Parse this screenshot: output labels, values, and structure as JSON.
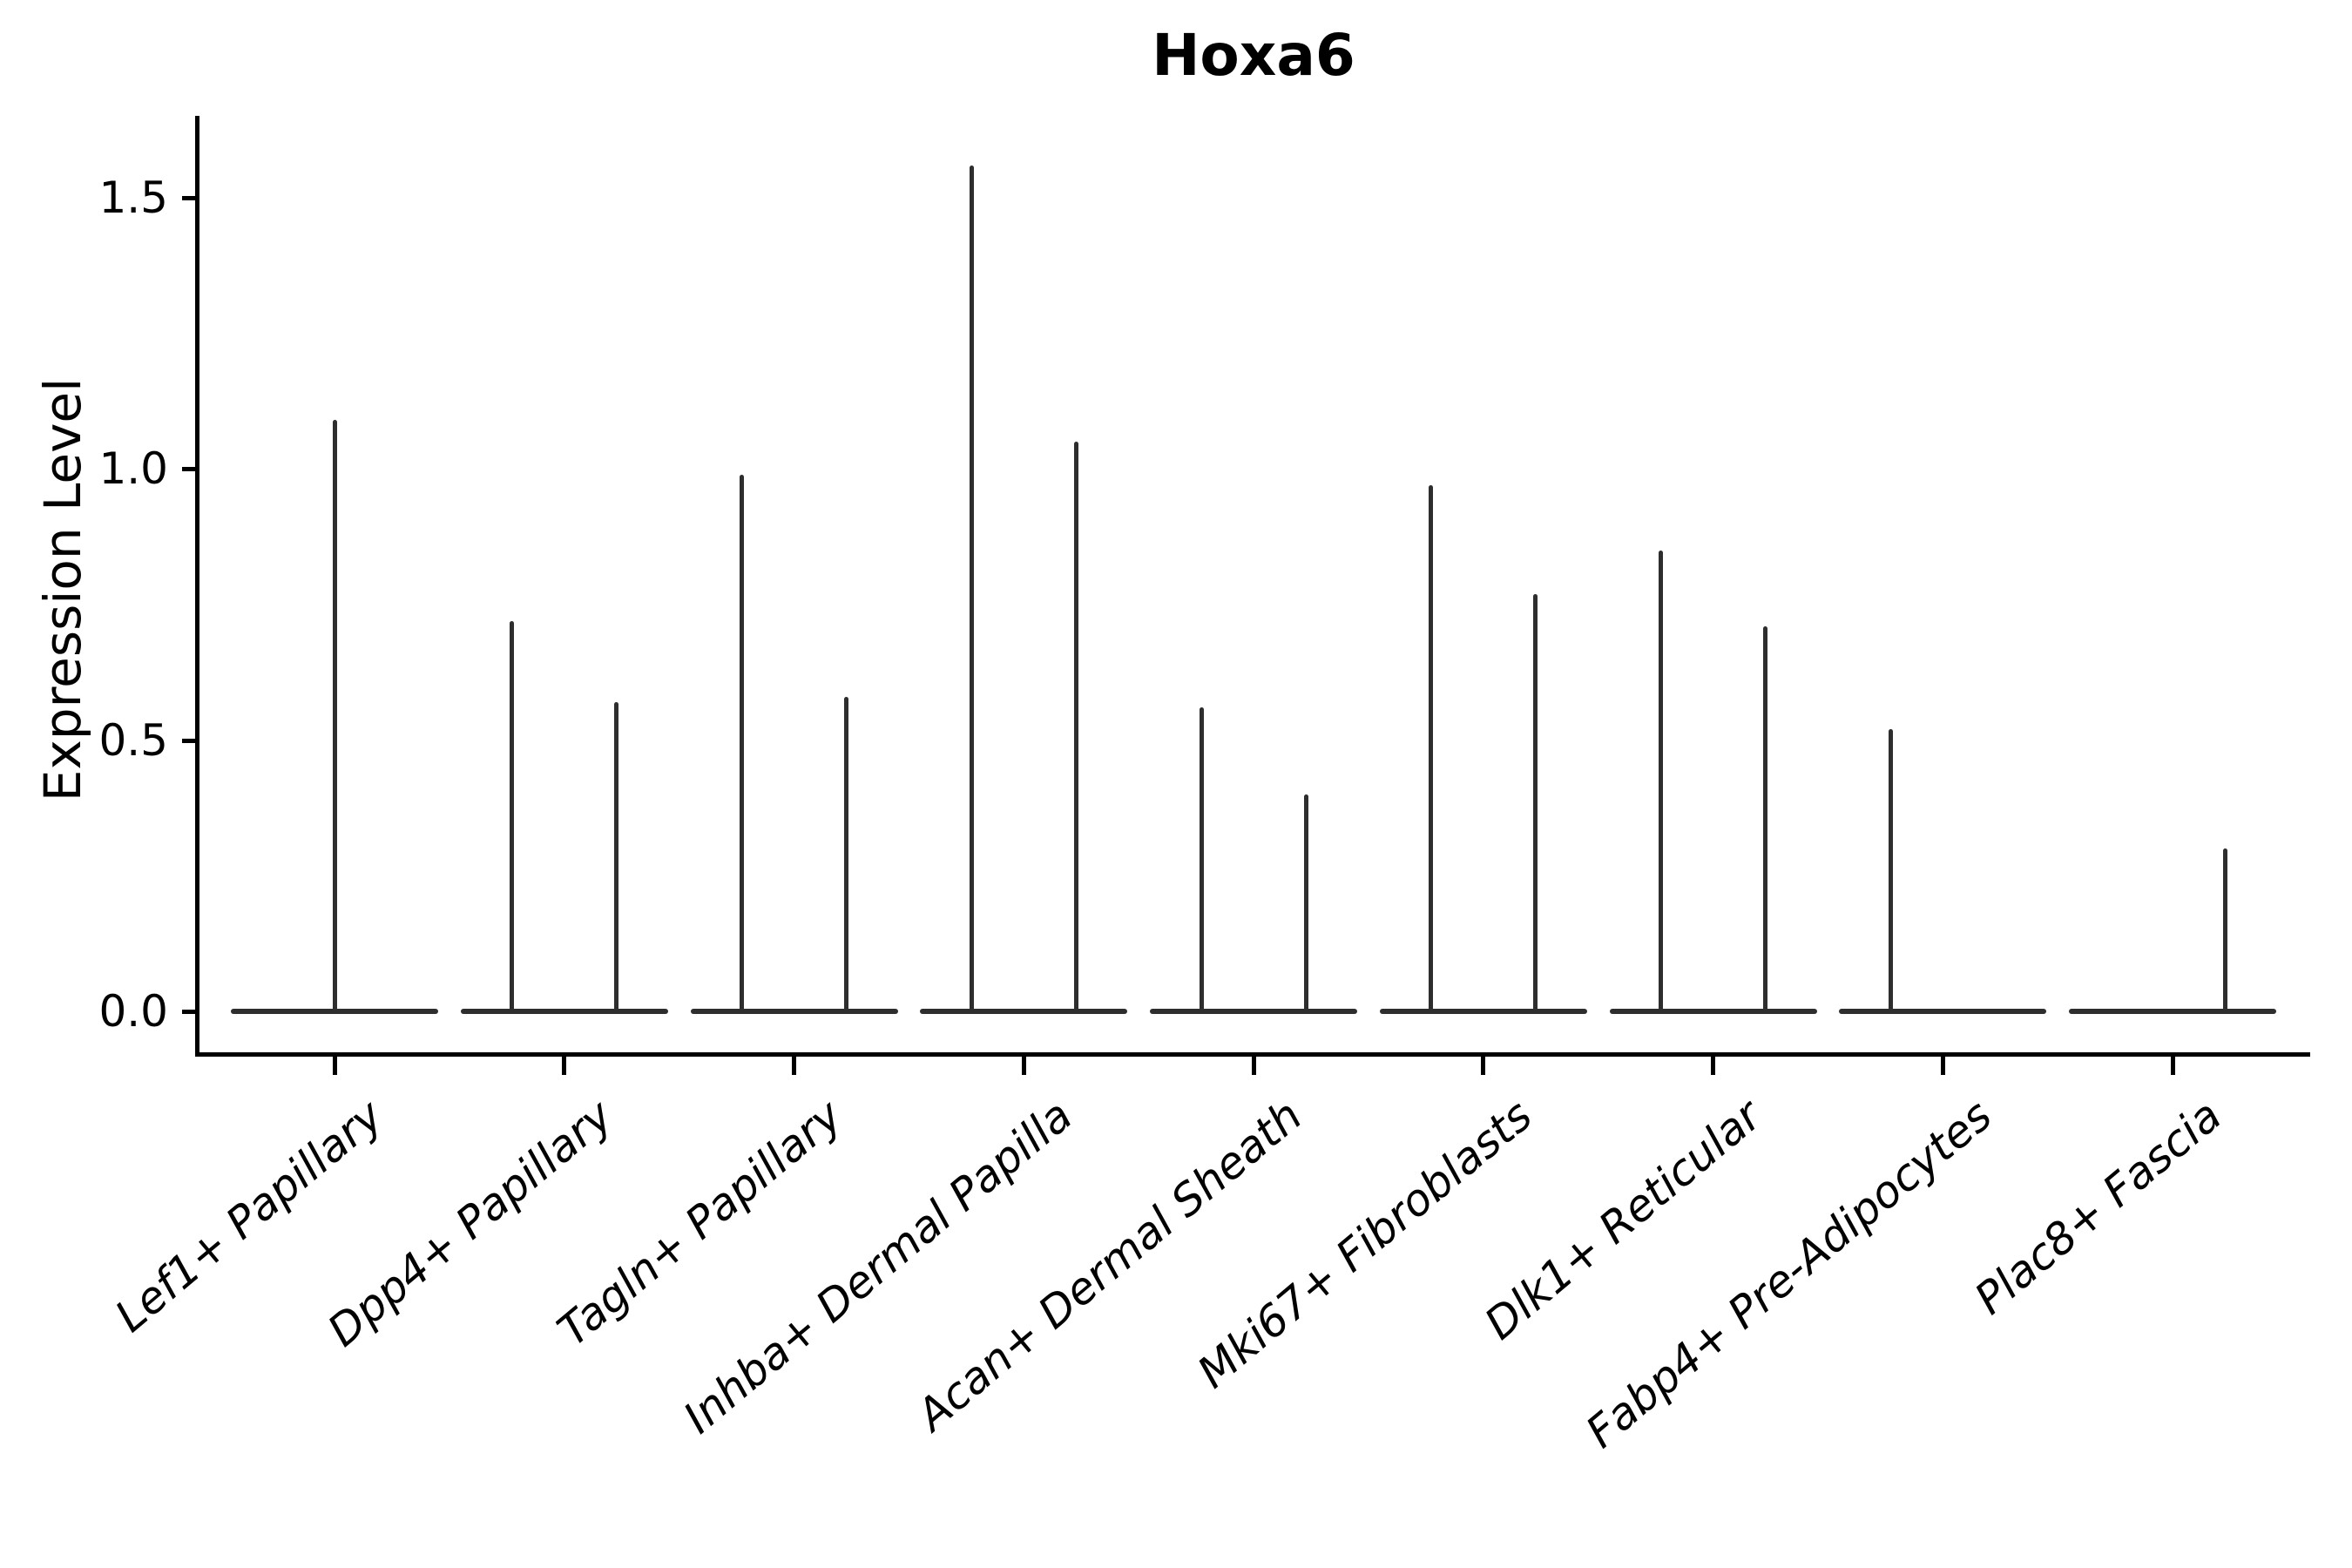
{
  "colors": {
    "background": "#ffffff",
    "ink": "#2e2e2e",
    "axis": "#000000"
  },
  "chart_data": {
    "type": "violin",
    "title": "Hoxa6",
    "xlabel": "",
    "ylabel": "Expression Level",
    "ylim": [
      -0.08,
      1.65
    ],
    "yticks": [
      0.0,
      0.5,
      1.0,
      1.5
    ],
    "ytick_labels": [
      "0.0",
      "0.5",
      "1.0",
      "1.5"
    ],
    "grid": false,
    "legend": "none",
    "categories": [
      "Lef1+ Papillary",
      "Dpp4+ Papillary",
      "Tagln+ Papillary",
      "Inhba+ Dermal Papilla",
      "Acan+ Dermal Sheath",
      "Mki67+ Fibroblasts",
      "Dlk1+ Reticular",
      "Fabp4+ Pre-Adipocytes",
      "Plac8+ Fascia"
    ],
    "series": [
      {
        "name": "Lef1+ Papillary",
        "spikes": [
          {
            "offset": 0,
            "max": 1.09
          }
        ]
      },
      {
        "name": "Dpp4+ Papillary",
        "spikes": [
          {
            "offset": -60,
            "max": 0.72
          },
          {
            "offset": 60,
            "max": 0.57
          }
        ]
      },
      {
        "name": "Tagln+ Papillary",
        "spikes": [
          {
            "offset": -60,
            "max": 0.99
          },
          {
            "offset": 60,
            "max": 0.58
          }
        ]
      },
      {
        "name": "Inhba+ Dermal Papilla",
        "spikes": [
          {
            "offset": -60,
            "max": 1.56
          },
          {
            "offset": 60,
            "max": 1.05
          }
        ]
      },
      {
        "name": "Acan+ Dermal Sheath",
        "spikes": [
          {
            "offset": -60,
            "max": 0.56
          },
          {
            "offset": 60,
            "max": 0.4
          }
        ]
      },
      {
        "name": "Mki67+ Fibroblasts",
        "spikes": [
          {
            "offset": -60,
            "max": 0.97
          },
          {
            "offset": 60,
            "max": 0.77
          }
        ]
      },
      {
        "name": "Dlk1+ Reticular",
        "spikes": [
          {
            "offset": -60,
            "max": 0.85
          },
          {
            "offset": 60,
            "max": 0.71
          }
        ]
      },
      {
        "name": "Fabp4+ Pre-Adipocytes",
        "spikes": [
          {
            "offset": -60,
            "max": 0.52
          }
        ]
      },
      {
        "name": "Plac8+ Fascia",
        "spikes": [
          {
            "offset": 60,
            "max": 0.3
          }
        ]
      }
    ],
    "baseline_value": 0.0
  }
}
